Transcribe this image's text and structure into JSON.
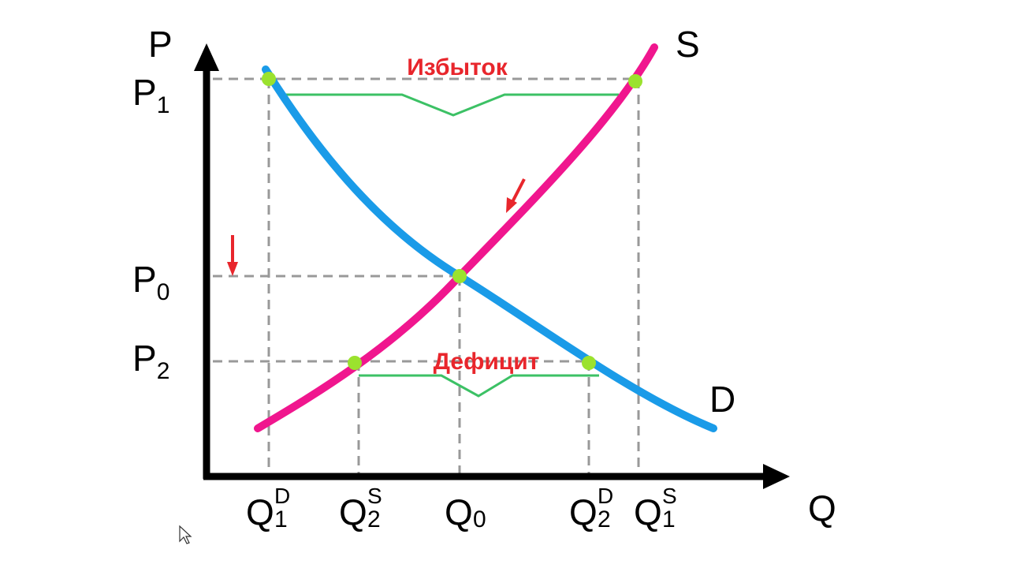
{
  "axes": {
    "y": "P",
    "x": "Q"
  },
  "curves": {
    "supply": "S",
    "demand": "D"
  },
  "price_labels": [
    {
      "main": "P",
      "sub": "1"
    },
    {
      "main": "P",
      "sub": "0"
    },
    {
      "main": "P",
      "sub": "2"
    }
  ],
  "quantity_labels": [
    {
      "main": "Q",
      "sub": "1",
      "sup": "D"
    },
    {
      "main": "Q",
      "sub": "2",
      "sup": "S"
    },
    {
      "main": "Q",
      "sub": "0"
    },
    {
      "main": "Q",
      "sub": "2",
      "sup": "D"
    },
    {
      "main": "Q",
      "sub": "1",
      "sup": "S"
    }
  ],
  "annotations": {
    "surplus": "Избыток",
    "shortage": "Дефицит"
  }
}
